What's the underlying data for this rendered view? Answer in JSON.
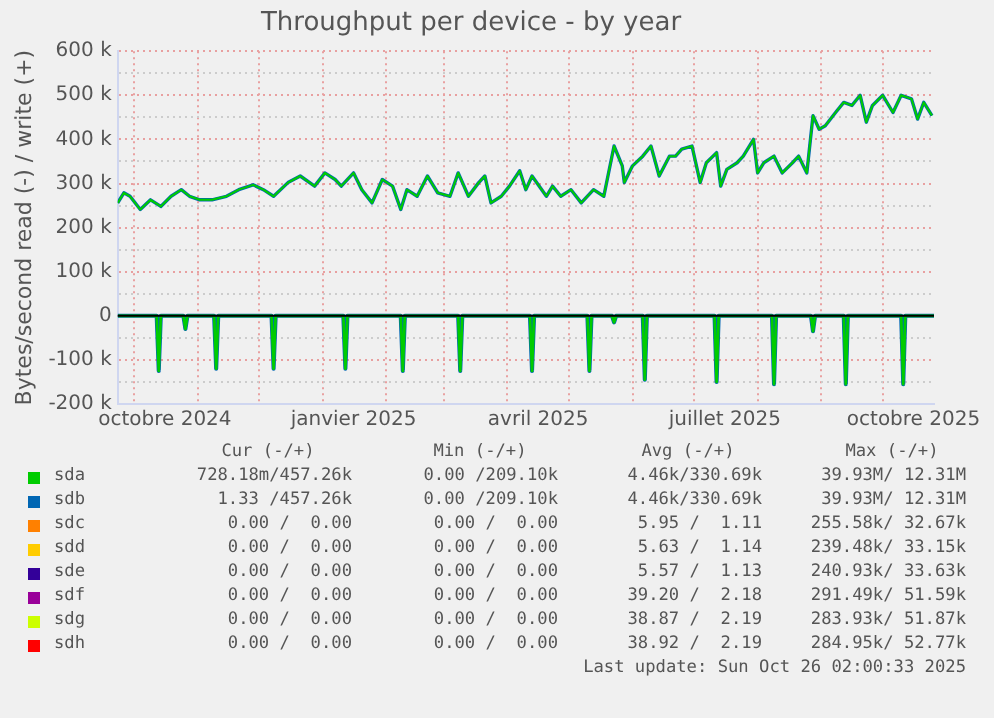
{
  "chart_data": {
    "type": "line",
    "title": "Throughput per device - by year",
    "ylabel": "Bytes/second read (-) / write (+)",
    "xlim": [
      "2024-09-23",
      "2025-10-26"
    ],
    "xticks": [
      {
        "value": "2024-10-01",
        "label": null
      },
      {
        "value": "2024-10-16",
        "label": "octobre 2024"
      },
      {
        "value": "2024-11-01",
        "label": null
      },
      {
        "value": "2024-12-01",
        "label": null
      },
      {
        "value": "2025-01-01",
        "label": null
      },
      {
        "value": "2025-01-16",
        "label": "janvier 2025"
      },
      {
        "value": "2025-02-01",
        "label": null
      },
      {
        "value": "2025-03-01",
        "label": null
      },
      {
        "value": "2025-04-01",
        "label": null
      },
      {
        "value": "2025-04-16",
        "label": "avril 2025"
      },
      {
        "value": "2025-05-01",
        "label": null
      },
      {
        "value": "2025-06-01",
        "label": null
      },
      {
        "value": "2025-07-01",
        "label": null
      },
      {
        "value": "2025-07-16",
        "label": "juillet 2025"
      },
      {
        "value": "2025-08-01",
        "label": null
      },
      {
        "value": "2025-09-01",
        "label": null
      },
      {
        "value": "2025-10-01",
        "label": null
      },
      {
        "value": "2025-10-16",
        "label": "octobre 2025"
      }
    ],
    "ylim": [
      -200000,
      600000
    ],
    "yticks": [
      {
        "value": -200000,
        "label": "-200 k"
      },
      {
        "value": -150000,
        "label": null
      },
      {
        "value": -100000,
        "label": "-100 k"
      },
      {
        "value": -50000,
        "label": null
      },
      {
        "value": 0,
        "label": "0"
      },
      {
        "value": 50000,
        "label": null
      },
      {
        "value": 100000,
        "label": "100 k"
      },
      {
        "value": 150000,
        "label": null
      },
      {
        "value": 200000,
        "label": "200 k"
      },
      {
        "value": 250000,
        "label": null
      },
      {
        "value": 300000,
        "label": "300 k"
      },
      {
        "value": 350000,
        "label": null
      },
      {
        "value": 400000,
        "label": "400 k"
      },
      {
        "value": 450000,
        "label": null
      },
      {
        "value": 500000,
        "label": "500 k"
      },
      {
        "value": 550000,
        "label": null
      },
      {
        "value": 600000,
        "label": "600 k"
      }
    ],
    "grid": true,
    "legend": "bottom",
    "marker": "none",
    "line_style": "solid",
    "ref_lines": [
      {
        "axis": "y",
        "value": 0,
        "color": "#000000"
      }
    ],
    "series": [
      {
        "name": "sda",
        "color": "#00cc00",
        "x": [
          "2024-09-23",
          "2024-09-26",
          "2024-09-29",
          "2024-10-04",
          "2024-10-09",
          "2024-10-14",
          "2024-10-19",
          "2024-10-24",
          "2024-10-28",
          "2024-11-02",
          "2024-11-08",
          "2024-11-15",
          "2024-11-21",
          "2024-11-28",
          "2024-12-03",
          "2024-12-08",
          "2024-12-15",
          "2024-12-21",
          "2024-12-28",
          "2025-01-02",
          "2025-01-07",
          "2025-01-10",
          "2025-01-16",
          "2025-01-20",
          "2025-01-25",
          "2025-01-30",
          "2025-02-04",
          "2025-02-08",
          "2025-02-11",
          "2025-02-16",
          "2025-02-21",
          "2025-02-26",
          "2025-03-04",
          "2025-03-08",
          "2025-03-13",
          "2025-03-18",
          "2025-03-21",
          "2025-03-24",
          "2025-03-29",
          "2025-04-02",
          "2025-04-07",
          "2025-04-10",
          "2025-04-13",
          "2025-04-20",
          "2025-04-23",
          "2025-04-27",
          "2025-05-02",
          "2025-05-07",
          "2025-05-13",
          "2025-05-18",
          "2025-05-23",
          "2025-05-27",
          "2025-05-28",
          "2025-06-01",
          "2025-06-06",
          "2025-06-10",
          "2025-06-14",
          "2025-06-19",
          "2025-06-22",
          "2025-06-25",
          "2025-06-30",
          "2025-07-04",
          "2025-07-07",
          "2025-07-12",
          "2025-07-14",
          "2025-07-17",
          "2025-07-22",
          "2025-07-25",
          "2025-07-30",
          "2025-08-01",
          "2025-08-04",
          "2025-08-09",
          "2025-08-13",
          "2025-08-18",
          "2025-08-21",
          "2025-08-25",
          "2025-08-28",
          "2025-08-31",
          "2025-09-03",
          "2025-09-08",
          "2025-09-12",
          "2025-09-16",
          "2025-09-20",
          "2025-09-23",
          "2025-09-26",
          "2025-10-01",
          "2025-10-06",
          "2025-10-10",
          "2025-10-15",
          "2025-10-18",
          "2025-10-21",
          "2025-10-25"
        ],
        "values": [
          256000,
          279000,
          271000,
          241000,
          263000,
          248000,
          271000,
          286000,
          271000,
          263000,
          263000,
          271000,
          286000,
          297000,
          286000,
          271000,
          302000,
          317000,
          294000,
          324000,
          309000,
          294000,
          324000,
          286000,
          256000,
          309000,
          294000,
          241000,
          286000,
          271000,
          317000,
          279000,
          271000,
          324000,
          271000,
          302000,
          317000,
          256000,
          271000,
          294000,
          329000,
          286000,
          317000,
          271000,
          294000,
          271000,
          286000,
          256000,
          286000,
          271000,
          385000,
          340000,
          302000,
          340000,
          362000,
          385000,
          317000,
          362000,
          362000,
          378000,
          385000,
          302000,
          347000,
          370000,
          294000,
          332000,
          347000,
          362000,
          400000,
          324000,
          347000,
          362000,
          324000,
          347000,
          362000,
          324000,
          454000,
          423000,
          431000,
          461000,
          484000,
          477000,
          500000,
          439000,
          477000,
          500000,
          461000,
          500000,
          492000,
          446000,
          484000,
          454000
        ]
      },
      {
        "color": "#00cc00",
        "x": [
          "2024-09-23",
          "2024-10-12",
          "2024-10-13",
          "2024-10-14",
          "2024-10-25",
          "2024-10-26",
          "2024-10-27",
          "2024-11-09",
          "2024-11-10",
          "2024-11-11",
          "2024-12-07",
          "2024-12-08",
          "2024-12-09",
          "2025-01-11",
          "2025-01-12",
          "2025-01-13",
          "2025-02-08",
          "2025-02-09",
          "2025-02-10",
          "2025-03-08",
          "2025-03-09",
          "2025-03-10",
          "2025-04-12",
          "2025-04-13",
          "2025-04-14",
          "2025-05-10",
          "2025-05-11",
          "2025-05-12",
          "2025-05-22",
          "2025-05-23",
          "2025-05-24",
          "2025-06-06",
          "2025-06-07",
          "2025-06-08",
          "2025-07-11",
          "2025-07-12",
          "2025-07-13",
          "2025-08-08",
          "2025-08-09",
          "2025-08-10",
          "2025-08-27",
          "2025-08-28",
          "2025-08-29",
          "2025-09-12",
          "2025-09-13",
          "2025-09-14",
          "2025-10-10",
          "2025-10-11",
          "2025-10-12",
          "2025-10-26"
        ],
        "values": [
          0,
          0,
          -125000,
          0,
          0,
          -30000,
          0,
          0,
          -120000,
          0,
          0,
          -120000,
          0,
          0,
          -120000,
          0,
          0,
          -125000,
          0,
          0,
          -125000,
          0,
          0,
          -125000,
          0,
          0,
          -125000,
          0,
          0,
          -15000,
          0,
          0,
          -145000,
          0,
          0,
          -150000,
          0,
          0,
          -155000,
          0,
          0,
          -35000,
          0,
          0,
          -155000,
          0,
          0,
          -155000,
          0,
          0
        ]
      },
      {
        "name": "sdb",
        "color": "#0066b3",
        "x": [
          "2024-09-23",
          "2024-09-26",
          "2024-09-29",
          "2024-10-04",
          "2024-10-09",
          "2024-10-14",
          "2024-10-19",
          "2024-10-24",
          "2024-10-28",
          "2024-11-02",
          "2024-11-08",
          "2024-11-15",
          "2024-11-21",
          "2024-11-28",
          "2024-12-03",
          "2024-12-08",
          "2024-12-15",
          "2024-12-21",
          "2024-12-28",
          "2025-01-02",
          "2025-01-07",
          "2025-01-10",
          "2025-01-16",
          "2025-01-20",
          "2025-01-25",
          "2025-01-30",
          "2025-02-04",
          "2025-02-08",
          "2025-02-11",
          "2025-02-16",
          "2025-02-21",
          "2025-02-26",
          "2025-03-04",
          "2025-03-08",
          "2025-03-13",
          "2025-03-18",
          "2025-03-21",
          "2025-03-24",
          "2025-03-29",
          "2025-04-02",
          "2025-04-07",
          "2025-04-10",
          "2025-04-13",
          "2025-04-20",
          "2025-04-23",
          "2025-04-27",
          "2025-05-02",
          "2025-05-07",
          "2025-05-13",
          "2025-05-18",
          "2025-05-23",
          "2025-05-27",
          "2025-05-28",
          "2025-06-01",
          "2025-06-06",
          "2025-06-10",
          "2025-06-14",
          "2025-06-19",
          "2025-06-22",
          "2025-06-25",
          "2025-06-30",
          "2025-07-04",
          "2025-07-07",
          "2025-07-12",
          "2025-07-14",
          "2025-07-17",
          "2025-07-22",
          "2025-07-25",
          "2025-07-30",
          "2025-08-01",
          "2025-08-04",
          "2025-08-09",
          "2025-08-13",
          "2025-08-18",
          "2025-08-21",
          "2025-08-25",
          "2025-08-28",
          "2025-08-31",
          "2025-09-03",
          "2025-09-08",
          "2025-09-12",
          "2025-09-16",
          "2025-09-20",
          "2025-09-23",
          "2025-09-26",
          "2025-10-01",
          "2025-10-06",
          "2025-10-10",
          "2025-10-15",
          "2025-10-18",
          "2025-10-21",
          "2025-10-25"
        ],
        "values": [
          256000,
          279000,
          271000,
          241000,
          263000,
          248000,
          271000,
          286000,
          271000,
          263000,
          263000,
          271000,
          286000,
          297000,
          286000,
          271000,
          302000,
          317000,
          294000,
          324000,
          309000,
          294000,
          324000,
          286000,
          256000,
          309000,
          294000,
          241000,
          286000,
          271000,
          317000,
          279000,
          271000,
          324000,
          271000,
          302000,
          317000,
          256000,
          271000,
          294000,
          329000,
          286000,
          317000,
          271000,
          294000,
          271000,
          286000,
          256000,
          286000,
          271000,
          385000,
          340000,
          302000,
          340000,
          362000,
          385000,
          317000,
          362000,
          362000,
          378000,
          385000,
          302000,
          347000,
          370000,
          294000,
          332000,
          347000,
          362000,
          400000,
          324000,
          347000,
          362000,
          324000,
          347000,
          362000,
          324000,
          454000,
          423000,
          431000,
          461000,
          484000,
          477000,
          500000,
          439000,
          477000,
          500000,
          461000,
          500000,
          492000,
          446000,
          484000,
          454000
        ]
      },
      {
        "color": "#0066b3",
        "x": [
          "2024-09-23",
          "2024-10-12",
          "2024-10-13",
          "2024-10-14",
          "2024-10-25",
          "2024-10-26",
          "2024-10-27",
          "2024-11-09",
          "2024-11-10",
          "2024-11-11",
          "2024-12-07",
          "2024-12-08",
          "2024-12-09",
          "2025-01-11",
          "2025-01-12",
          "2025-01-13",
          "2025-02-08",
          "2025-02-09",
          "2025-02-10",
          "2025-03-08",
          "2025-03-09",
          "2025-03-10",
          "2025-04-12",
          "2025-04-13",
          "2025-04-14",
          "2025-05-10",
          "2025-05-11",
          "2025-05-12",
          "2025-05-22",
          "2025-05-23",
          "2025-05-24",
          "2025-06-06",
          "2025-06-07",
          "2025-06-08",
          "2025-07-11",
          "2025-07-12",
          "2025-07-13",
          "2025-08-08",
          "2025-08-09",
          "2025-08-10",
          "2025-08-27",
          "2025-08-28",
          "2025-08-29",
          "2025-09-12",
          "2025-09-13",
          "2025-09-14",
          "2025-10-10",
          "2025-10-11",
          "2025-10-12",
          "2025-10-26"
        ],
        "values": [
          0,
          0,
          -125000,
          0,
          0,
          -30000,
          0,
          0,
          -120000,
          0,
          0,
          -120000,
          0,
          0,
          -120000,
          0,
          0,
          -125000,
          0,
          0,
          -125000,
          0,
          0,
          -125000,
          0,
          0,
          -125000,
          0,
          0,
          -15000,
          0,
          0,
          -145000,
          0,
          0,
          -150000,
          0,
          0,
          -155000,
          0,
          0,
          -35000,
          0,
          0,
          -155000,
          0,
          0,
          -155000,
          0,
          0
        ]
      },
      {
        "name": "sdc",
        "color": "#ff8000"
      },
      {
        "name": "sdd",
        "color": "#ffcc00"
      },
      {
        "name": "sde",
        "color": "#330099"
      },
      {
        "name": "sdf",
        "color": "#990099"
      },
      {
        "name": "sdg",
        "color": "#ccff00"
      },
      {
        "name": "sdh",
        "color": "#ff0000"
      }
    ],
    "annotations": [
      "Cur (-/+)",
      "Min (-/+)",
      "Avg (-/+)",
      "Max (-/+)",
      "728.18m/457.26k",
      "0.00 /209.10k",
      "4.46k/330.69k",
      "39.93M/ 12.31M",
      "1.33 /457.26k",
      "0.00 /209.10k",
      "4.46k/330.69k",
      "39.93M/ 12.31M",
      "0.00 /  0.00",
      "0.00 /  0.00",
      "5.95 /  1.11",
      "255.58k/ 32.67k",
      "0.00 /  0.00",
      "0.00 /  0.00",
      "5.63 /  1.14",
      "239.48k/ 33.15k",
      "0.00 /  0.00",
      "0.00 /  0.00",
      "5.57 /  1.13",
      "240.93k/ 33.63k",
      "0.00 /  0.00",
      "0.00 /  0.00",
      "39.20 /  2.18",
      "291.49k/ 51.59k",
      "0.00 /  0.00",
      "0.00 /  0.00",
      "38.87 /  2.19",
      "283.93k/ 51.87k",
      "0.00 /  0.00",
      "0.00 /  0.00",
      "38.92 /  2.19",
      "284.95k/ 52.77k",
      "Last update: Sun Oct 26 02:00:33 2025"
    ]
  }
}
